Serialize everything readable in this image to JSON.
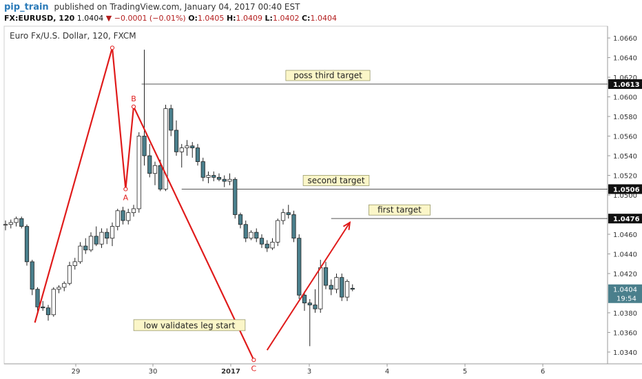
{
  "header": {
    "author": "pip_train",
    "published": "published on TradingView.com, January 04, 2017 00:40 EST",
    "symbol": "FX:EURUSD, 120",
    "last": "1.0404",
    "arrow": "▼",
    "change": "−0.0001 (−0.01%)",
    "o_label": "O:",
    "o_val": "1.0405",
    "h_label": "H:",
    "h_val": "1.0409",
    "l_label": "L:",
    "l_val": "1.0402",
    "c_label": "C:",
    "c_val": "1.0404"
  },
  "chart_data": {
    "type": "candlestick",
    "title": "Euro Fx/U.S. Dollar, 120, FXCM",
    "x_ticks": [
      "29",
      "30",
      "2017",
      "3",
      "4",
      "5",
      "6"
    ],
    "y_ticks": [
      "1.0340",
      "1.0360",
      "1.0380",
      "1.0420",
      "1.0440",
      "1.0460",
      "1.0500",
      "1.0520",
      "1.0540",
      "1.0560",
      "1.0580",
      "1.0600",
      "1.0620",
      "1.0640",
      "1.0660"
    ],
    "ylim": [
      1.0328,
      1.0672
    ],
    "grid": false,
    "colors": {
      "up": "#ffffff",
      "down": "#4a7f8c",
      "outline": "#222222",
      "pattern": "#e01b1b",
      "level_line": "#555555",
      "price_tag": "#4a7f8c"
    },
    "candles": [
      {
        "o": 1.047,
        "h": 1.0474,
        "l": 1.0464,
        "c": 1.047
      },
      {
        "o": 1.047,
        "h": 1.0475,
        "l": 1.0466,
        "c": 1.0472
      },
      {
        "o": 1.0472,
        "h": 1.0478,
        "l": 1.0468,
        "c": 1.0476
      },
      {
        "o": 1.0476,
        "h": 1.0478,
        "l": 1.0466,
        "c": 1.0468
      },
      {
        "o": 1.0468,
        "h": 1.047,
        "l": 1.0428,
        "c": 1.0432
      },
      {
        "o": 1.0432,
        "h": 1.0434,
        "l": 1.0398,
        "c": 1.0404
      },
      {
        "o": 1.0404,
        "h": 1.0406,
        "l": 1.038,
        "c": 1.0386
      },
      {
        "o": 1.0386,
        "h": 1.0392,
        "l": 1.0382,
        "c": 1.0385
      },
      {
        "o": 1.0385,
        "h": 1.0388,
        "l": 1.0372,
        "c": 1.0378
      },
      {
        "o": 1.0378,
        "h": 1.0406,
        "l": 1.0376,
        "c": 1.0404
      },
      {
        "o": 1.0404,
        "h": 1.0408,
        "l": 1.04,
        "c": 1.0406
      },
      {
        "o": 1.0406,
        "h": 1.0412,
        "l": 1.0402,
        "c": 1.041
      },
      {
        "o": 1.041,
        "h": 1.0432,
        "l": 1.0408,
        "c": 1.0428
      },
      {
        "o": 1.0428,
        "h": 1.0436,
        "l": 1.0424,
        "c": 1.0432
      },
      {
        "o": 1.0432,
        "h": 1.0452,
        "l": 1.043,
        "c": 1.0448
      },
      {
        "o": 1.0448,
        "h": 1.0456,
        "l": 1.044,
        "c": 1.0444
      },
      {
        "o": 1.0444,
        "h": 1.0462,
        "l": 1.0442,
        "c": 1.0458
      },
      {
        "o": 1.0458,
        "h": 1.0468,
        "l": 1.0448,
        "c": 1.045
      },
      {
        "o": 1.045,
        "h": 1.0466,
        "l": 1.0446,
        "c": 1.0462
      },
      {
        "o": 1.0462,
        "h": 1.0466,
        "l": 1.045,
        "c": 1.0456
      },
      {
        "o": 1.0456,
        "h": 1.0472,
        "l": 1.0448,
        "c": 1.0468
      },
      {
        "o": 1.0468,
        "h": 1.0486,
        "l": 1.0464,
        "c": 1.0484
      },
      {
        "o": 1.0484,
        "h": 1.0488,
        "l": 1.047,
        "c": 1.0474
      },
      {
        "o": 1.0474,
        "h": 1.0486,
        "l": 1.047,
        "c": 1.0482
      },
      {
        "o": 1.0482,
        "h": 1.049,
        "l": 1.0478,
        "c": 1.0486
      },
      {
        "o": 1.0486,
        "h": 1.0564,
        "l": 1.0482,
        "c": 1.056
      },
      {
        "o": 1.056,
        "h": 1.0648,
        "l": 1.053,
        "c": 1.054
      },
      {
        "o": 1.054,
        "h": 1.0552,
        "l": 1.0518,
        "c": 1.0522
      },
      {
        "o": 1.0522,
        "h": 1.0534,
        "l": 1.051,
        "c": 1.053
      },
      {
        "o": 1.053,
        "h": 1.0536,
        "l": 1.0504,
        "c": 1.0506
      },
      {
        "o": 1.0506,
        "h": 1.0592,
        "l": 1.0504,
        "c": 1.0588
      },
      {
        "o": 1.0588,
        "h": 1.0592,
        "l": 1.056,
        "c": 1.0566
      },
      {
        "o": 1.0566,
        "h": 1.0576,
        "l": 1.054,
        "c": 1.0544
      },
      {
        "o": 1.0544,
        "h": 1.0552,
        "l": 1.0528,
        "c": 1.0548
      },
      {
        "o": 1.0548,
        "h": 1.0556,
        "l": 1.054,
        "c": 1.055
      },
      {
        "o": 1.055,
        "h": 1.0554,
        "l": 1.0538,
        "c": 1.0548
      },
      {
        "o": 1.0548,
        "h": 1.0552,
        "l": 1.053,
        "c": 1.0534
      },
      {
        "o": 1.0534,
        "h": 1.0538,
        "l": 1.0514,
        "c": 1.0518
      },
      {
        "o": 1.0518,
        "h": 1.0524,
        "l": 1.0512,
        "c": 1.052
      },
      {
        "o": 1.052,
        "h": 1.0524,
        "l": 1.0514,
        "c": 1.0518
      },
      {
        "o": 1.0518,
        "h": 1.0522,
        "l": 1.0514,
        "c": 1.0516
      },
      {
        "o": 1.0516,
        "h": 1.052,
        "l": 1.0508,
        "c": 1.0514
      },
      {
        "o": 1.0514,
        "h": 1.0522,
        "l": 1.051,
        "c": 1.0516
      },
      {
        "o": 1.0516,
        "h": 1.0518,
        "l": 1.0476,
        "c": 1.048
      },
      {
        "o": 1.048,
        "h": 1.0482,
        "l": 1.0466,
        "c": 1.047
      },
      {
        "o": 1.047,
        "h": 1.0474,
        "l": 1.0452,
        "c": 1.0456
      },
      {
        "o": 1.0456,
        "h": 1.0464,
        "l": 1.0454,
        "c": 1.0462
      },
      {
        "o": 1.0462,
        "h": 1.0466,
        "l": 1.0452,
        "c": 1.0456
      },
      {
        "o": 1.0456,
        "h": 1.046,
        "l": 1.0446,
        "c": 1.045
      },
      {
        "o": 1.045,
        "h": 1.0454,
        "l": 1.0442,
        "c": 1.0446
      },
      {
        "o": 1.0446,
        "h": 1.0456,
        "l": 1.0444,
        "c": 1.0452
      },
      {
        "o": 1.0452,
        "h": 1.0476,
        "l": 1.0448,
        "c": 1.0474
      },
      {
        "o": 1.0474,
        "h": 1.0486,
        "l": 1.047,
        "c": 1.0482
      },
      {
        "o": 1.0482,
        "h": 1.049,
        "l": 1.0476,
        "c": 1.048
      },
      {
        "o": 1.048,
        "h": 1.0484,
        "l": 1.0452,
        "c": 1.0456
      },
      {
        "o": 1.0456,
        "h": 1.046,
        "l": 1.0394,
        "c": 1.0398
      },
      {
        "o": 1.0398,
        "h": 1.0402,
        "l": 1.0382,
        "c": 1.039
      },
      {
        "o": 1.039,
        "h": 1.0394,
        "l": 1.0346,
        "c": 1.0388
      },
      {
        "o": 1.0388,
        "h": 1.0404,
        "l": 1.038,
        "c": 1.0384
      },
      {
        "o": 1.0384,
        "h": 1.0434,
        "l": 1.038,
        "c": 1.0426
      },
      {
        "o": 1.0426,
        "h": 1.0432,
        "l": 1.0404,
        "c": 1.0408
      },
      {
        "o": 1.0408,
        "h": 1.0414,
        "l": 1.0398,
        "c": 1.0404
      },
      {
        "o": 1.0404,
        "h": 1.042,
        "l": 1.04,
        "c": 1.0416
      },
      {
        "o": 1.0416,
        "h": 1.042,
        "l": 1.0392,
        "c": 1.0396
      },
      {
        "o": 1.0396,
        "h": 1.0414,
        "l": 1.0392,
        "c": 1.0412
      },
      {
        "o": 1.0405,
        "h": 1.0409,
        "l": 1.0402,
        "c": 1.0404
      }
    ],
    "levels": [
      {
        "price": 1.0613,
        "label": "poss third target",
        "tag": "1.0613"
      },
      {
        "price": 1.0506,
        "label": "second target",
        "tag": "1.0506"
      },
      {
        "price": 1.0476,
        "label": "first target",
        "tag": "1.0476"
      }
    ],
    "current_price": {
      "tag": "1.0404",
      "countdown": "19:54"
    },
    "pattern_points": [
      {
        "label": "",
        "bar": 5.5,
        "price": 1.037
      },
      {
        "label": "",
        "bar": 20,
        "price": 1.065
      },
      {
        "label": "A",
        "bar": 22.5,
        "price": 1.0506
      },
      {
        "label": "B",
        "bar": 24,
        "price": 1.059
      },
      {
        "label": "C",
        "bar": 46.5,
        "price": 1.0332
      }
    ],
    "projection_arrow": {
      "from": {
        "bar": 49,
        "price": 1.0342
      },
      "to": {
        "bar": 64.5,
        "price": 1.0472
      }
    },
    "annotations": [
      {
        "text": "low validates leg start",
        "bar": 24,
        "price": 1.0366
      }
    ]
  }
}
